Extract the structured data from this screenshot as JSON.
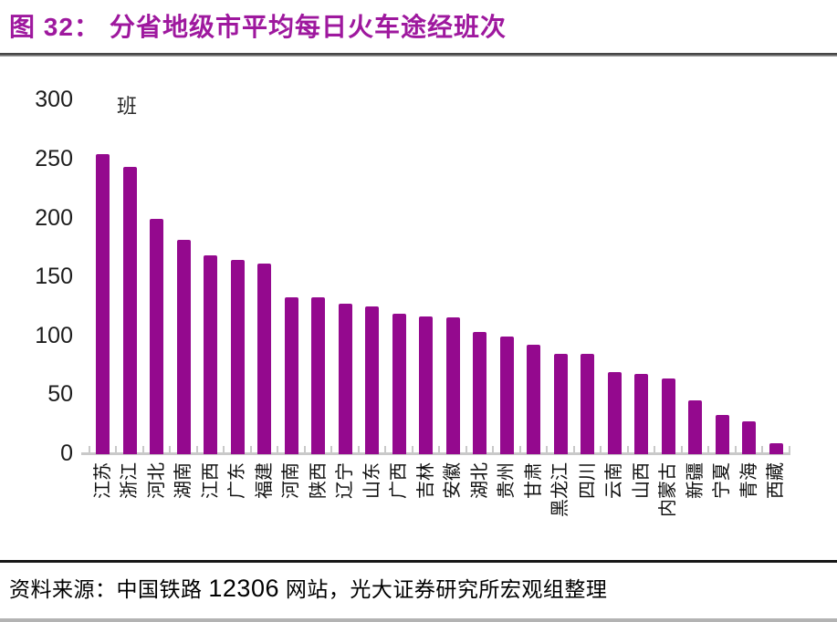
{
  "figure": {
    "label": "图 32：",
    "title": "分省地级市平均每日火车途经班次"
  },
  "chart_data": {
    "type": "bar",
    "title": "分省地级市平均每日火车途经班次",
    "ylabel": "班",
    "xlabel": "",
    "ylim": [
      0,
      300
    ],
    "yticks": [
      0,
      50,
      100,
      150,
      200,
      250,
      300
    ],
    "grid": false,
    "legend_position": "none",
    "categories": [
      "江苏",
      "浙江",
      "河北",
      "湖南",
      "江西",
      "广东",
      "福建",
      "河南",
      "陕西",
      "辽宁",
      "山东",
      "广西",
      "吉林",
      "安徽",
      "湖北",
      "贵州",
      "甘肃",
      "黑龙江",
      "四川",
      "云南",
      "山西",
      "内蒙古",
      "新疆",
      "宁夏",
      "青海",
      "西藏"
    ],
    "values": [
      255,
      244,
      200,
      182,
      169,
      165,
      162,
      133,
      133,
      128,
      125,
      119,
      117,
      116,
      104,
      100,
      93,
      85,
      85,
      70,
      68,
      64,
      46,
      33,
      28,
      9
    ]
  },
  "footer": {
    "source_prefix": "资料来源：中国铁路 ",
    "source_number": "12306",
    "source_suffix": " 网站，光大证券研究所宏观组整理"
  },
  "colors": {
    "title": "#9E189E",
    "bar": "#94098E",
    "axis": "#C9C9C9",
    "tick_text": "#1C1C1C"
  }
}
